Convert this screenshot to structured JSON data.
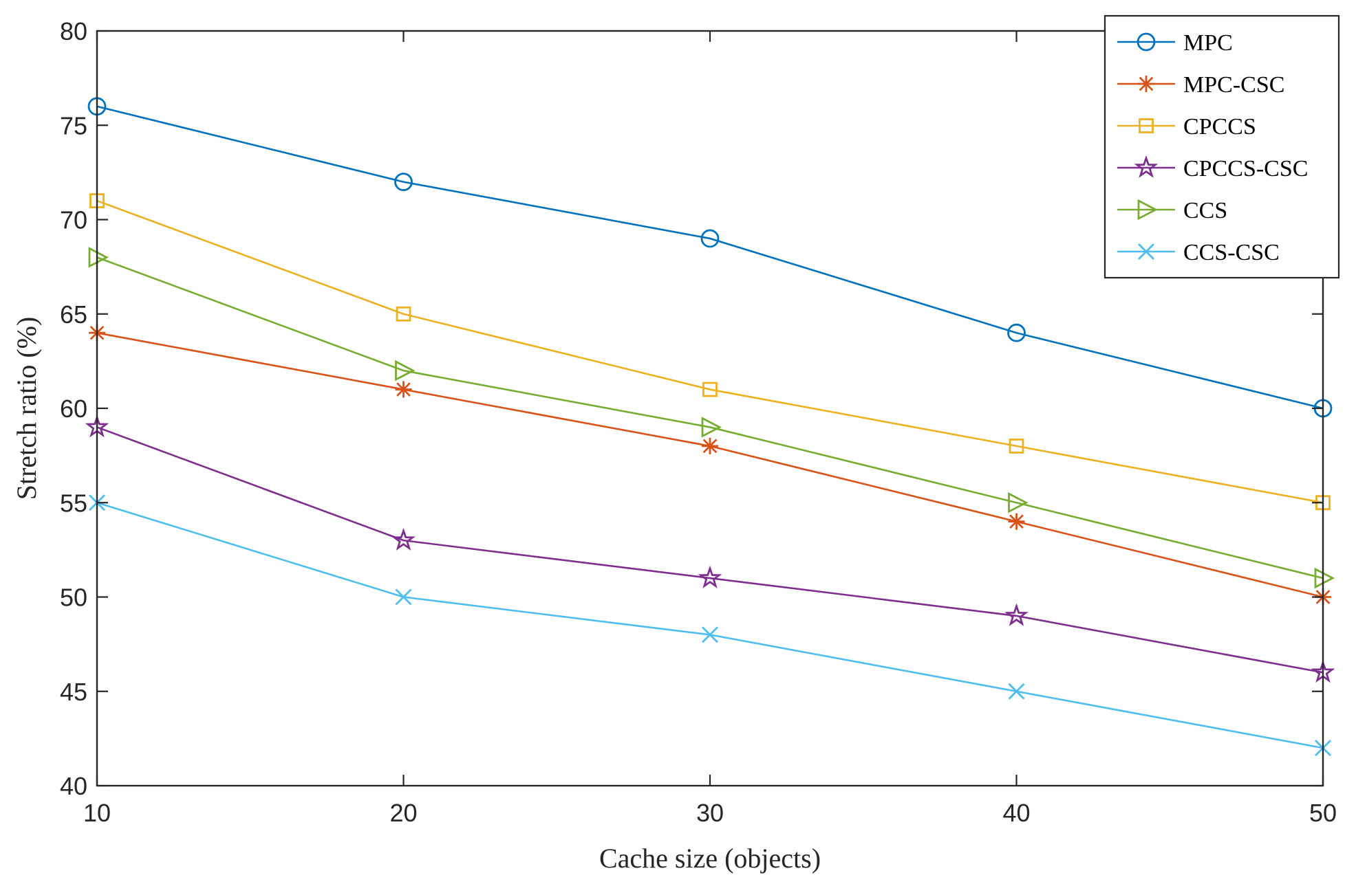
{
  "chart_data": {
    "type": "line",
    "title": "",
    "xlabel": "Cache size (objects)",
    "ylabel": "Stretch ratio (%)",
    "x": [
      10,
      20,
      30,
      40,
      50
    ],
    "xlim": [
      10,
      50
    ],
    "ylim": [
      40,
      80
    ],
    "xticks": [
      "10",
      "20",
      "30",
      "40",
      "50"
    ],
    "yticks": [
      "40",
      "45",
      "50",
      "55",
      "60",
      "65",
      "70",
      "75",
      "80"
    ],
    "grid": false,
    "legend_position": "top-right",
    "series": [
      {
        "name": "MPC",
        "marker": "circle",
        "color": "#0072BD",
        "values": [
          76,
          72,
          69,
          64,
          60
        ]
      },
      {
        "name": "MPC-CSC",
        "marker": "asterisk",
        "color": "#D95319",
        "values": [
          64,
          61,
          58,
          54,
          50
        ]
      },
      {
        "name": "CPCCS",
        "marker": "square",
        "color": "#EDB120",
        "values": [
          71,
          65,
          61,
          58,
          55
        ]
      },
      {
        "name": "CPCCS-CSC",
        "marker": "star",
        "color": "#7E2F8E",
        "values": [
          59,
          53,
          51,
          49,
          46
        ]
      },
      {
        "name": "CCS",
        "marker": "triangle-right",
        "color": "#77AC30",
        "values": [
          68,
          62,
          59,
          55,
          51
        ]
      },
      {
        "name": "CCS-CSC",
        "marker": "x",
        "color": "#4DBEEE",
        "values": [
          55,
          50,
          48,
          45,
          42
        ]
      }
    ]
  }
}
